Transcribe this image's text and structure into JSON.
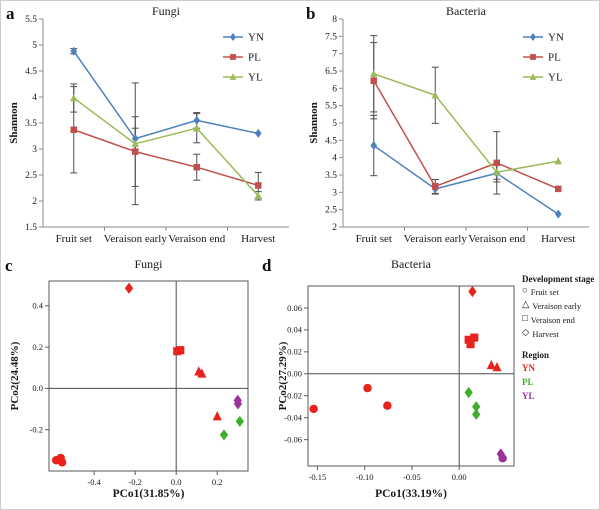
{
  "panels": {
    "a": {
      "letter": "a",
      "title": "Fungi",
      "ylabel": "Shannon"
    },
    "b": {
      "letter": "b",
      "title": "Bacteria",
      "ylabel": "Shannon"
    },
    "c": {
      "letter": "c",
      "title": "Fungi",
      "xlabel": "PCo1(31.85%)",
      "ylabel": "PCo2(24.48%)"
    },
    "d": {
      "letter": "d",
      "title": "Bacteria",
      "xlabel": "PCo1(33.19%)",
      "ylabel": "PCo2(27.29%)"
    }
  },
  "colors": {
    "series": {
      "YN": "#4f81bd",
      "PL": "#c0504d",
      "YL": "#9bbb59"
    },
    "region": {
      "YN": "#e8221c",
      "PL": "#3fae2a",
      "YL": "#993399"
    },
    "error_bar": "#4d4d4d",
    "axis": "#8c8c8c",
    "box": "#595959",
    "zero_line": "#4d4d4d",
    "text": "#1a1a1a"
  },
  "legend": {
    "stage_title": "Development stage",
    "stage_items": [
      {
        "label": "Fruit set",
        "shape": "circle",
        "glyph": "○"
      },
      {
        "label": "Veraison early",
        "shape": "triangle",
        "glyph": "△"
      },
      {
        "label": "Veraison end",
        "shape": "square",
        "glyph": "□"
      },
      {
        "label": "Harvest",
        "shape": "diamond",
        "glyph": "◇"
      }
    ],
    "region_title": "Region",
    "region_items": [
      {
        "label": "YN"
      },
      {
        "label": "PL"
      },
      {
        "label": "YL"
      }
    ]
  },
  "chart_data": [
    {
      "id": "a",
      "type": "line",
      "title": "Fungi",
      "ylabel": "Shannon",
      "categories": [
        "Fruit set",
        "Veraison early",
        "Veraison end",
        "Harvest"
      ],
      "ylim": [
        1.5,
        5.5
      ],
      "ytick_step": 0.5,
      "grid": false,
      "legend_position": "top-right",
      "series": [
        {
          "name": "YN",
          "marker": "diamond",
          "values": [
            4.88,
            3.2,
            3.55,
            3.3
          ],
          "errors": [
            0.05,
            0.2,
            0.15,
            0
          ]
        },
        {
          "name": "PL",
          "marker": "square",
          "values": [
            3.37,
            2.95,
            2.65,
            2.3
          ],
          "errors": [
            0.83,
            0.67,
            0.25,
            0.25
          ]
        },
        {
          "name": "YL",
          "marker": "triangle",
          "values": [
            3.98,
            3.1,
            3.4,
            2.1
          ],
          "errors": [
            0.27,
            1.17,
            0.28,
            0.08
          ]
        }
      ]
    },
    {
      "id": "b",
      "type": "line",
      "title": "Bacteria",
      "ylabel": "Shannon",
      "categories": [
        "Fruit set",
        "Veraison early",
        "Veraison end",
        "Harvest"
      ],
      "ylim": [
        2,
        8
      ],
      "ytick_step": 0.5,
      "grid": false,
      "legend_position": "top-right",
      "series": [
        {
          "name": "YN",
          "marker": "diamond",
          "values": [
            4.35,
            3.1,
            3.55,
            2.37
          ],
          "errors": [
            0.87,
            0.15,
            0.25,
            0
          ]
        },
        {
          "name": "PL",
          "marker": "square",
          "values": [
            6.22,
            3.17,
            3.85,
            3.1
          ],
          "errors": [
            1.1,
            0.2,
            0.9,
            0
          ]
        },
        {
          "name": "YL",
          "marker": "triangle",
          "values": [
            6.42,
            5.8,
            3.58,
            3.9
          ],
          "errors": [
            1.1,
            0.81,
            0.2,
            0
          ]
        }
      ]
    },
    {
      "id": "c",
      "type": "scatter",
      "title": "Fungi",
      "xlabel": "PCo1(31.85%)",
      "ylabel": "PCo2(24.48%)",
      "xlim": [
        -0.62,
        0.35
      ],
      "ylim": [
        -0.4,
        0.52
      ],
      "xticks": [
        "-0.4",
        "-0.2",
        "0.0",
        "0.2"
      ],
      "yticks": [
        "-0.2",
        "0.0",
        "0.2",
        "0.4"
      ],
      "points": [
        {
          "region": "YN",
          "stage": "Harvest",
          "x": -0.23,
          "y": 0.485
        },
        {
          "region": "YN",
          "stage": "Veraison end",
          "x": 0.005,
          "y": 0.18
        },
        {
          "region": "YN",
          "stage": "Veraison end",
          "x": 0.02,
          "y": 0.185
        },
        {
          "region": "YN",
          "stage": "Veraison early",
          "x": 0.11,
          "y": 0.082
        },
        {
          "region": "YN",
          "stage": "Veraison early",
          "x": 0.125,
          "y": 0.072
        },
        {
          "region": "YN",
          "stage": "Veraison early",
          "x": 0.2,
          "y": -0.135
        },
        {
          "region": "YN",
          "stage": "Fruit set",
          "x": -0.585,
          "y": -0.348
        },
        {
          "region": "YN",
          "stage": "Fruit set",
          "x": -0.563,
          "y": -0.337
        },
        {
          "region": "YN",
          "stage": "Fruit set",
          "x": -0.556,
          "y": -0.358
        },
        {
          "region": "YL",
          "stage": "Harvest",
          "x": 0.3,
          "y": -0.058
        },
        {
          "region": "YL",
          "stage": "Harvest",
          "x": 0.301,
          "y": -0.075
        },
        {
          "region": "PL",
          "stage": "Harvest",
          "x": 0.31,
          "y": -0.16
        },
        {
          "region": "PL",
          "stage": "Harvest",
          "x": 0.233,
          "y": -0.225
        }
      ]
    },
    {
      "id": "d",
      "type": "scatter",
      "title": "Bacteria",
      "xlabel": "PCo1(33.19%)",
      "ylabel": "PCo2(27.29%)",
      "xlim": [
        -0.16,
        0.058
      ],
      "ylim": [
        -0.084,
        0.08
      ],
      "xticks": [
        "-0.15",
        "-0.10",
        "-0.05",
        "0.00"
      ],
      "yticks": [
        "-0.06",
        "-0.04",
        "-0.02",
        "0.00",
        "0.02",
        "0.04",
        "0.06"
      ],
      "points": [
        {
          "region": "YN",
          "stage": "Harvest",
          "x": 0.014,
          "y": 0.075
        },
        {
          "region": "YN",
          "stage": "Veraison end",
          "x": 0.01,
          "y": 0.031
        },
        {
          "region": "YN",
          "stage": "Veraison end",
          "x": 0.016,
          "y": 0.033
        },
        {
          "region": "YN",
          "stage": "Veraison end",
          "x": 0.012,
          "y": 0.027
        },
        {
          "region": "YN",
          "stage": "Veraison early",
          "x": 0.034,
          "y": 0.008
        },
        {
          "region": "YN",
          "stage": "Veraison early",
          "x": 0.04,
          "y": 0.006
        },
        {
          "region": "YN",
          "stage": "Fruit set",
          "x": -0.097,
          "y": -0.013
        },
        {
          "region": "YN",
          "stage": "Fruit set",
          "x": -0.076,
          "y": -0.029
        },
        {
          "region": "YN",
          "stage": "Fruit set",
          "x": -0.154,
          "y": -0.032
        },
        {
          "region": "PL",
          "stage": "Harvest",
          "x": 0.01,
          "y": -0.017
        },
        {
          "region": "PL",
          "stage": "Harvest",
          "x": 0.018,
          "y": -0.03
        },
        {
          "region": "PL",
          "stage": "Harvest",
          "x": 0.018,
          "y": -0.037
        },
        {
          "region": "YL",
          "stage": "Harvest",
          "x": 0.044,
          "y": -0.073
        },
        {
          "region": "YL",
          "stage": "Fruit set",
          "x": 0.046,
          "y": -0.077
        }
      ]
    }
  ]
}
